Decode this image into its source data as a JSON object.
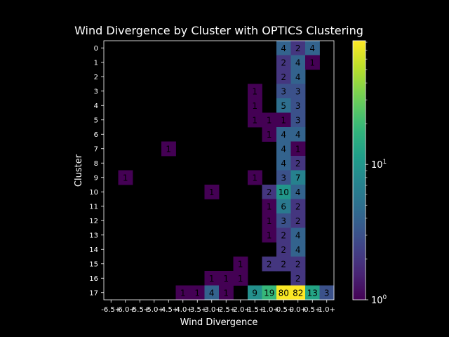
{
  "chart_data": {
    "type": "heatmap",
    "title": "Wind Divergence by Cluster with OPTICS Clustering",
    "xlabel": "Wind Divergence",
    "ylabel": "Cluster",
    "x_categories": [
      "-6.5+",
      "-6.0+",
      "-5.5+",
      "-5.0+",
      "-4.5+",
      "-4.0+",
      "-3.5+",
      "-3.0+",
      "-2.5+",
      "-2.0+",
      "-1.5+",
      "-1.0+",
      "-0.5+",
      "0.0+",
      "0.5+",
      "1.0+"
    ],
    "y_categories": [
      "0",
      "1",
      "2",
      "3",
      "4",
      "5",
      "6",
      "7",
      "8",
      "9",
      "10",
      "11",
      "12",
      "13",
      "14",
      "15",
      "16",
      "17"
    ],
    "cells": [
      {
        "cluster": "0",
        "bin": "-0.5+",
        "count": 4
      },
      {
        "cluster": "0",
        "bin": "0.0+",
        "count": 2
      },
      {
        "cluster": "0",
        "bin": "0.5+",
        "count": 4
      },
      {
        "cluster": "1",
        "bin": "-0.5+",
        "count": 2
      },
      {
        "cluster": "1",
        "bin": "0.0+",
        "count": 4
      },
      {
        "cluster": "1",
        "bin": "0.5+",
        "count": 1
      },
      {
        "cluster": "2",
        "bin": "-0.5+",
        "count": 2
      },
      {
        "cluster": "2",
        "bin": "0.0+",
        "count": 4
      },
      {
        "cluster": "3",
        "bin": "-1.5+",
        "count": 1
      },
      {
        "cluster": "3",
        "bin": "-0.5+",
        "count": 3
      },
      {
        "cluster": "3",
        "bin": "0.0+",
        "count": 3
      },
      {
        "cluster": "4",
        "bin": "-1.5+",
        "count": 1
      },
      {
        "cluster": "4",
        "bin": "-0.5+",
        "count": 5
      },
      {
        "cluster": "4",
        "bin": "0.0+",
        "count": 3
      },
      {
        "cluster": "5",
        "bin": "-1.5+",
        "count": 1
      },
      {
        "cluster": "5",
        "bin": "-1.0+",
        "count": 1
      },
      {
        "cluster": "5",
        "bin": "-0.5+",
        "count": 1
      },
      {
        "cluster": "5",
        "bin": "0.0+",
        "count": 3
      },
      {
        "cluster": "6",
        "bin": "-1.0+",
        "count": 1
      },
      {
        "cluster": "6",
        "bin": "-0.5+",
        "count": 4
      },
      {
        "cluster": "6",
        "bin": "0.0+",
        "count": 4
      },
      {
        "cluster": "7",
        "bin": "-4.5+",
        "count": 1
      },
      {
        "cluster": "7",
        "bin": "-0.5+",
        "count": 4
      },
      {
        "cluster": "7",
        "bin": "0.0+",
        "count": 1
      },
      {
        "cluster": "8",
        "bin": "-0.5+",
        "count": 4
      },
      {
        "cluster": "8",
        "bin": "0.0+",
        "count": 2
      },
      {
        "cluster": "9",
        "bin": "-6.0+",
        "count": 1
      },
      {
        "cluster": "9",
        "bin": "-1.5+",
        "count": 1
      },
      {
        "cluster": "9",
        "bin": "-0.5+",
        "count": 3
      },
      {
        "cluster": "9",
        "bin": "0.0+",
        "count": 7
      },
      {
        "cluster": "10",
        "bin": "-3.0+",
        "count": 1
      },
      {
        "cluster": "10",
        "bin": "-1.0+",
        "count": 2
      },
      {
        "cluster": "10",
        "bin": "-0.5+",
        "count": 10
      },
      {
        "cluster": "10",
        "bin": "0.0+",
        "count": 4
      },
      {
        "cluster": "11",
        "bin": "-1.0+",
        "count": 1
      },
      {
        "cluster": "11",
        "bin": "-0.5+",
        "count": 6
      },
      {
        "cluster": "11",
        "bin": "0.0+",
        "count": 2
      },
      {
        "cluster": "12",
        "bin": "-1.0+",
        "count": 1
      },
      {
        "cluster": "12",
        "bin": "-0.5+",
        "count": 3
      },
      {
        "cluster": "12",
        "bin": "0.0+",
        "count": 2
      },
      {
        "cluster": "13",
        "bin": "-1.0+",
        "count": 1
      },
      {
        "cluster": "13",
        "bin": "-0.5+",
        "count": 2
      },
      {
        "cluster": "13",
        "bin": "0.0+",
        "count": 4
      },
      {
        "cluster": "14",
        "bin": "-0.5+",
        "count": 2
      },
      {
        "cluster": "14",
        "bin": "0.0+",
        "count": 4
      },
      {
        "cluster": "15",
        "bin": "-2.0+",
        "count": 1
      },
      {
        "cluster": "15",
        "bin": "-1.0+",
        "count": 2
      },
      {
        "cluster": "15",
        "bin": "-0.5+",
        "count": 2
      },
      {
        "cluster": "15",
        "bin": "0.0+",
        "count": 2
      },
      {
        "cluster": "16",
        "bin": "-3.0+",
        "count": 1
      },
      {
        "cluster": "16",
        "bin": "-2.5+",
        "count": 1
      },
      {
        "cluster": "16",
        "bin": "-2.0+",
        "count": 1
      },
      {
        "cluster": "16",
        "bin": "0.0+",
        "count": 2
      },
      {
        "cluster": "17",
        "bin": "-4.0+",
        "count": 1
      },
      {
        "cluster": "17",
        "bin": "-3.5+",
        "count": 1
      },
      {
        "cluster": "17",
        "bin": "-3.0+",
        "count": 4
      },
      {
        "cluster": "17",
        "bin": "-2.5+",
        "count": 1
      },
      {
        "cluster": "17",
        "bin": "-1.5+",
        "count": 9
      },
      {
        "cluster": "17",
        "bin": "-1.0+",
        "count": 19
      },
      {
        "cluster": "17",
        "bin": "-0.5+",
        "count": 80
      },
      {
        "cluster": "17",
        "bin": "0.0+",
        "count": 82
      },
      {
        "cluster": "17",
        "bin": "0.5+",
        "count": 13
      },
      {
        "cluster": "17",
        "bin": "1.0+",
        "count": 3
      }
    ],
    "color_scale": {
      "type": "log",
      "colormap": "viridis",
      "min": 1,
      "max": 82
    },
    "colorbar_ticks": [
      {
        "value": 1,
        "base": "10",
        "exp": "0"
      },
      {
        "value": 10,
        "base": "10",
        "exp": "1"
      }
    ],
    "background": "#000000"
  }
}
